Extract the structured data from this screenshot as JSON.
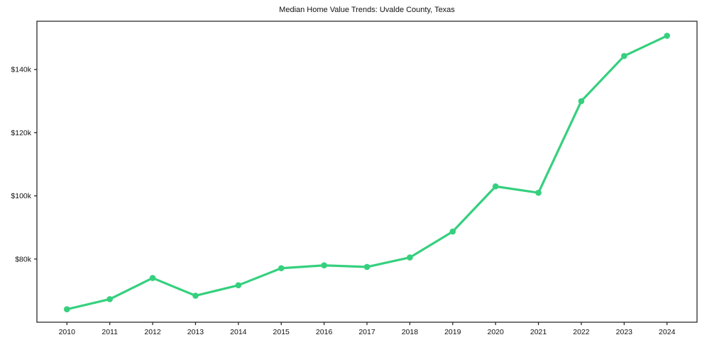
{
  "chart_data": {
    "type": "line",
    "title": "Median Home Value Trends: Uvalde County, Texas",
    "xlabel": "",
    "ylabel": "",
    "x": [
      2010,
      2011,
      2012,
      2013,
      2014,
      2015,
      2016,
      2017,
      2018,
      2019,
      2020,
      2021,
      2022,
      2023,
      2024
    ],
    "series": [
      {
        "name": "Median Home Value",
        "values": [
          64100,
          67300,
          74000,
          68400,
          71700,
          77100,
          78000,
          77500,
          80500,
          88700,
          103000,
          101000,
          130000,
          144300,
          150700
        ]
      }
    ],
    "ylim": [
      60000,
      155300
    ],
    "yticks": [
      {
        "value": 80000,
        "label": "$80k"
      },
      {
        "value": 100000,
        "label": "$100k"
      },
      {
        "value": 120000,
        "label": "$120k"
      },
      {
        "value": 140000,
        "label": "$140k"
      }
    ],
    "grid": false,
    "legend": "none",
    "line_color": "#35d07e",
    "marker_color": "#35d07e",
    "axis_color": "#1a1a1a",
    "text_color": "#111111",
    "background": "#ffffff"
  }
}
